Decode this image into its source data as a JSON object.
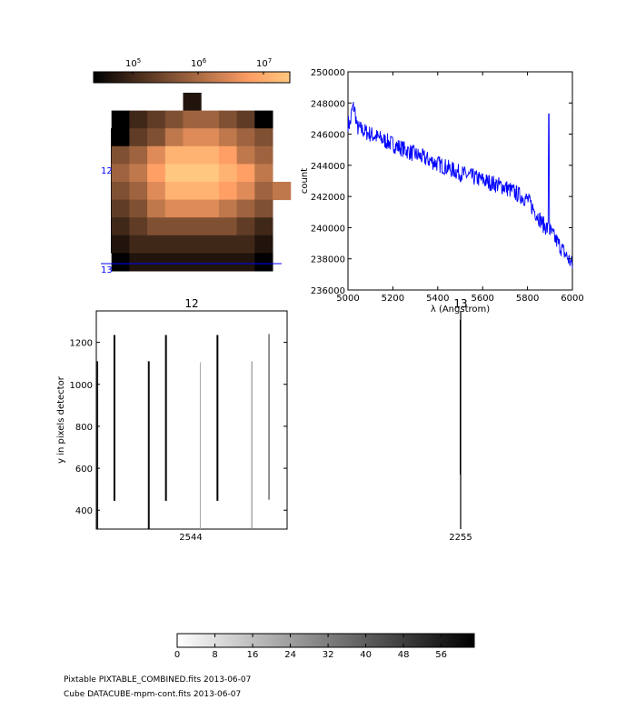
{
  "chart_data": [
    {
      "type": "heatmap",
      "name": "cube_image",
      "colormap": "copper",
      "colorbar": {
        "ticks": [
          "10",
          "10",
          "10"
        ],
        "exponents": [
          "5",
          "6",
          "7"
        ],
        "scale": "log"
      },
      "cells": [
        [
          0,
          0,
          0,
          0,
          0,
          1,
          0,
          0,
          0,
          0,
          0
        ],
        [
          0,
          0,
          2,
          3,
          4,
          5,
          5,
          4,
          3,
          0,
          0
        ],
        [
          0,
          0,
          3,
          4,
          6,
          7,
          7,
          6,
          5,
          4,
          0
        ],
        [
          0,
          4,
          5,
          7,
          9,
          9,
          9,
          8,
          6,
          5,
          0
        ],
        [
          0,
          5,
          6,
          8,
          10,
          10,
          10,
          9,
          8,
          6,
          0
        ],
        [
          0,
          4,
          5,
          7,
          9,
          9,
          9,
          8,
          7,
          5,
          6
        ],
        [
          0,
          3,
          4,
          6,
          7,
          7,
          7,
          6,
          5,
          4,
          0
        ],
        [
          0,
          2,
          3,
          4,
          4,
          4,
          4,
          4,
          3,
          2,
          0
        ],
        [
          0,
          1,
          2,
          2,
          2,
          2,
          2,
          2,
          2,
          1,
          0
        ],
        [
          0,
          0,
          1,
          1,
          1,
          1,
          1,
          1,
          1,
          0,
          0
        ]
      ],
      "markers": [
        {
          "label": "12"
        },
        {
          "label": "13"
        }
      ],
      "marker_color": "#0000ff"
    },
    {
      "type": "line",
      "name": "spectrum",
      "xlabel": "λ (Angstrom)",
      "ylabel": "count",
      "xlim": [
        5000,
        6000
      ],
      "ylim": [
        236000,
        250000
      ],
      "x_ticks": [
        "5000",
        "5200",
        "5400",
        "5600",
        "5800",
        "6000"
      ],
      "y_ticks": [
        "236000",
        "238000",
        "240000",
        "242000",
        "244000",
        "246000",
        "248000",
        "250000"
      ],
      "color": "#0000ff",
      "trend": [
        [
          5000,
          246700
        ],
        [
          5100,
          246000
        ],
        [
          5300,
          244700
        ],
        [
          5500,
          243500
        ],
        [
          5700,
          242600
        ],
        [
          5800,
          241800
        ],
        [
          5870,
          240200
        ],
        [
          5900,
          239800
        ],
        [
          6000,
          237600
        ]
      ],
      "spike": {
        "x": 5895,
        "y": 247300
      }
    },
    {
      "type": "line",
      "name": "pixtable_12",
      "title": "12",
      "ylabel": "y in pixels detector",
      "xlabel": "2544",
      "ylim": [
        310,
        1350
      ],
      "y_ticks": [
        "400",
        "600",
        "800",
        "1000",
        "1200"
      ],
      "segments": [
        {
          "x": 0.005,
          "y0": 310,
          "y1": 1110,
          "w": 2,
          "shade": 0.9
        },
        {
          "x": 0.095,
          "y0": 445,
          "y1": 1235,
          "w": 2,
          "shade": 1.0
        },
        {
          "x": 0.275,
          "y0": 310,
          "y1": 1110,
          "w": 2,
          "shade": 0.95
        },
        {
          "x": 0.365,
          "y0": 445,
          "y1": 1235,
          "w": 2,
          "shade": 1.0
        },
        {
          "x": 0.545,
          "y0": 310,
          "y1": 1105,
          "w": 1,
          "shade": 0.35
        },
        {
          "x": 0.635,
          "y0": 445,
          "y1": 1235,
          "w": 2,
          "shade": 1.0
        },
        {
          "x": 0.815,
          "y0": 310,
          "y1": 1110,
          "w": 1,
          "shade": 0.5
        },
        {
          "x": 0.905,
          "y0": 450,
          "y1": 1240,
          "w": 1,
          "shade": 0.85
        }
      ]
    },
    {
      "type": "line",
      "name": "pixtable_13",
      "title": "13",
      "xlabel": "2255",
      "ylim": [
        310,
        1350
      ],
      "segments": [
        {
          "y0": 310,
          "y1": 1350,
          "w": 1.5,
          "shade": 0.8
        }
      ]
    },
    {
      "type": "colorbar",
      "name": "grey_colorbar",
      "colormap": "gray_r",
      "range": [
        0,
        63
      ],
      "ticks": [
        "0",
        "8",
        "16",
        "24",
        "32",
        "40",
        "48",
        "56"
      ]
    }
  ],
  "footer": {
    "line1": "Pixtable PIXTABLE_COMBINED.fits 2013-06-07",
    "line2": "Cube DATACUBE-mpm-cont.fits 2013-06-07"
  }
}
